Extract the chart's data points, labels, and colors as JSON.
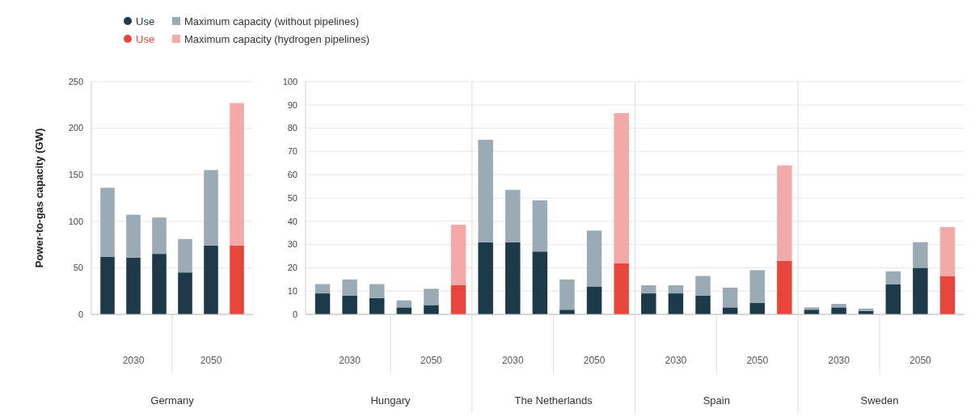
{
  "chart_data": [
    {
      "type": "bar",
      "stacked": true,
      "ylabel": "Power-to-gas capacity (GW)",
      "categories": [
        null,
        null,
        null,
        null,
        null,
        null
      ],
      "ylim": [
        0,
        250
      ],
      "yticks": [
        0,
        50,
        100,
        150,
        200,
        250
      ],
      "grid": "y",
      "legend": "top",
      "annotations": [
        "2030",
        "2050",
        "Germany"
      ],
      "series": [
        {
          "name": "Use",
          "color": "#1d3a4a",
          "values": [
            62,
            61,
            65,
            45,
            74,
            null
          ]
        },
        {
          "name": "Maximum capacity (without pipelines)",
          "color": "#9aabb5",
          "values": [
            74,
            46,
            39,
            36,
            81,
            null
          ]
        },
        {
          "name": "Use",
          "color": "#e8463c",
          "values": [
            null,
            null,
            null,
            null,
            null,
            74
          ]
        },
        {
          "name": "Maximum capacity (hydrogen pipelines)",
          "color": "#f2a9a8",
          "values": [
            null,
            null,
            null,
            null,
            null,
            153
          ]
        }
      ]
    },
    {
      "type": "bar",
      "stacked": true,
      "categories": [
        null,
        null,
        null,
        null,
        null,
        null,
        null,
        null,
        null,
        null,
        null,
        null,
        null,
        null,
        null,
        null,
        null,
        null,
        null,
        null,
        null,
        null,
        null,
        null
      ],
      "ylim": [
        0,
        100
      ],
      "yticks": [
        0,
        10,
        20,
        30,
        40,
        50,
        60,
        70,
        80,
        90,
        100
      ],
      "grid": "y",
      "annotations": [
        "2030",
        "2050",
        "Hungary",
        "2030",
        "2050",
        "The Netherlands",
        "2030",
        "2050",
        "Spain",
        "2030",
        "2050",
        "Sweden"
      ],
      "series": [
        {
          "color": "#1d3a4a",
          "values": [
            9,
            8,
            7,
            3,
            4,
            null,
            31,
            31,
            27,
            2,
            12,
            null,
            9,
            9,
            8,
            3,
            5,
            null,
            2,
            3,
            1.5,
            13,
            20,
            null
          ]
        },
        {
          "color": "#9aabb5",
          "values": [
            4,
            7,
            6,
            3,
            7,
            null,
            44,
            22.5,
            22,
            13,
            24,
            null,
            3.5,
            3.5,
            8.5,
            8.5,
            14,
            null,
            1,
            1.5,
            1,
            5.5,
            11,
            null
          ]
        },
        {
          "color": "#e8463c",
          "values": [
            null,
            null,
            null,
            null,
            null,
            12.5,
            null,
            null,
            null,
            null,
            null,
            22,
            null,
            null,
            null,
            null,
            null,
            23,
            null,
            null,
            null,
            null,
            null,
            16.5
          ]
        },
        {
          "color": "#f2a9a8",
          "values": [
            null,
            null,
            null,
            null,
            null,
            26,
            null,
            null,
            null,
            null,
            null,
            64.5,
            null,
            null,
            null,
            null,
            null,
            41,
            null,
            null,
            null,
            null,
            null,
            21
          ]
        }
      ]
    }
  ]
}
